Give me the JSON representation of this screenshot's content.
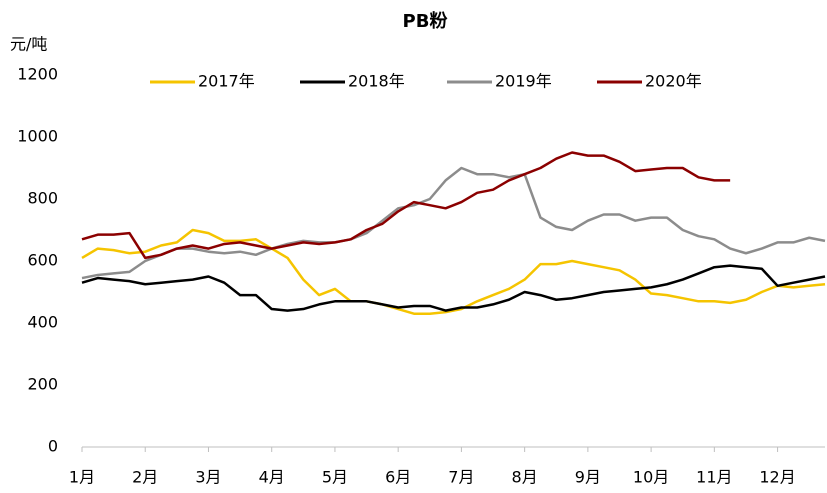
{
  "chart_data": {
    "type": "line",
    "title": "PB粉",
    "y_label": "元/吨",
    "x": [
      1,
      1.25,
      1.5,
      1.75,
      2,
      2.25,
      2.5,
      2.75,
      3,
      3.25,
      3.5,
      3.75,
      4,
      4.25,
      4.5,
      4.75,
      5,
      5.25,
      5.5,
      5.75,
      6,
      6.25,
      6.5,
      6.75,
      7,
      7.25,
      7.5,
      7.75,
      8,
      8.25,
      8.5,
      8.75,
      9,
      9.25,
      9.5,
      9.75,
      10,
      10.25,
      10.5,
      10.75,
      11,
      11.25,
      11.5,
      11.75,
      12,
      12.25,
      12.5,
      12.75
    ],
    "series": [
      {
        "name": "2017年",
        "color": "#f5c400",
        "values": [
          610,
          640,
          635,
          625,
          630,
          650,
          660,
          700,
          690,
          665,
          665,
          670,
          640,
          610,
          540,
          490,
          510,
          470,
          470,
          460,
          445,
          430,
          430,
          435,
          445,
          470,
          490,
          510,
          540,
          590,
          590,
          600,
          590,
          580,
          570,
          540,
          495,
          490,
          480,
          470,
          470,
          465,
          475,
          500,
          520,
          515,
          520,
          525
        ]
      },
      {
        "name": "2018年",
        "color": "#000000",
        "values": [
          530,
          545,
          540,
          535,
          525,
          530,
          535,
          540,
          550,
          530,
          490,
          490,
          445,
          440,
          445,
          460,
          470,
          470,
          470,
          460,
          450,
          455,
          455,
          440,
          450,
          450,
          460,
          475,
          500,
          490,
          475,
          480,
          490,
          500,
          505,
          510,
          515,
          525,
          540,
          560,
          580,
          585,
          580,
          575,
          520,
          530,
          540,
          550
        ]
      },
      {
        "name": "2019年",
        "color": "#8c8c8c",
        "values": [
          545,
          555,
          560,
          565,
          600,
          620,
          640,
          640,
          630,
          625,
          630,
          620,
          640,
          655,
          665,
          660,
          660,
          670,
          690,
          730,
          770,
          780,
          800,
          860,
          900,
          880,
          880,
          870,
          880,
          740,
          710,
          700,
          730,
          750,
          750,
          730,
          740,
          740,
          700,
          680,
          670,
          640,
          625,
          640,
          660,
          660,
          675,
          665
        ]
      },
      {
        "name": "2020年",
        "color": "#8b0000",
        "values": [
          670,
          685,
          685,
          690,
          610,
          620,
          640,
          650,
          640,
          655,
          660,
          650,
          640,
          650,
          660,
          655,
          660,
          670,
          700,
          720,
          760,
          790,
          780,
          770,
          790,
          820,
          830,
          860,
          880,
          900,
          930,
          950,
          940,
          940,
          920,
          890,
          895,
          900,
          900,
          870,
          860,
          860,
          null,
          null,
          null,
          null,
          null,
          null
        ]
      }
    ],
    "xlim": [
      1,
      12.75
    ],
    "xticks": [
      {
        "value": 1,
        "label": "1月"
      },
      {
        "value": 2,
        "label": "2月"
      },
      {
        "value": 3,
        "label": "3月"
      },
      {
        "value": 4,
        "label": "4月"
      },
      {
        "value": 5,
        "label": "5月"
      },
      {
        "value": 6,
        "label": "6月"
      },
      {
        "value": 7,
        "label": "7月"
      },
      {
        "value": 8,
        "label": "8月"
      },
      {
        "value": 9,
        "label": "9月"
      },
      {
        "value": 10,
        "label": "10月"
      },
      {
        "value": 11,
        "label": "11月"
      },
      {
        "value": 12,
        "label": "12月"
      }
    ],
    "ylim": [
      0,
      1200
    ],
    "yticks": [
      0,
      200,
      400,
      600,
      800,
      1000,
      1200
    ],
    "grid": false,
    "legend": "top"
  }
}
